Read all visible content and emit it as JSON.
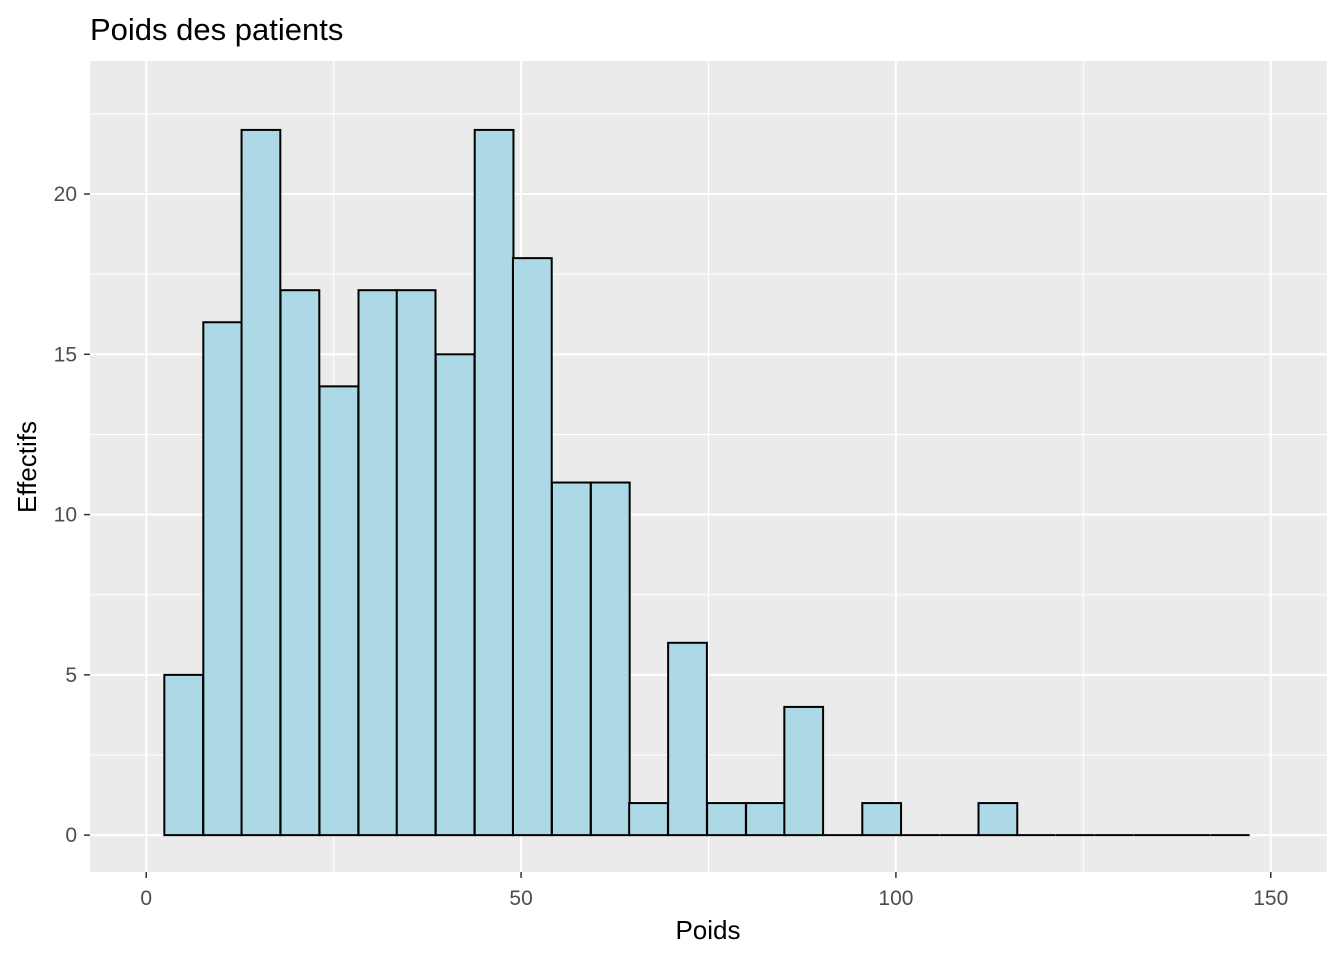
{
  "chart_data": {
    "type": "bar",
    "title": "Poids des patients",
    "xlabel": "Poids",
    "ylabel": "Effectifs",
    "xlim": [
      -7.5,
      157.5
    ],
    "ylim": [
      -1.15,
      24.15
    ],
    "x_ticks": [
      {
        "value": 0,
        "label": "0"
      },
      {
        "value": 50,
        "label": "50"
      },
      {
        "value": 100,
        "label": "100"
      },
      {
        "value": 150,
        "label": "150"
      }
    ],
    "y_ticks": [
      {
        "value": 0,
        "label": "0"
      },
      {
        "value": 5,
        "label": "5"
      },
      {
        "value": 10,
        "label": "10"
      },
      {
        "value": 15,
        "label": "15"
      },
      {
        "value": 20,
        "label": "20"
      }
    ],
    "bin_width": 5.17,
    "bins": [
      {
        "x": 5.0,
        "count": 5
      },
      {
        "x": 10.2,
        "count": 16
      },
      {
        "x": 15.3,
        "count": 22
      },
      {
        "x": 20.5,
        "count": 17
      },
      {
        "x": 25.7,
        "count": 14
      },
      {
        "x": 30.9,
        "count": 17
      },
      {
        "x": 36.0,
        "count": 17
      },
      {
        "x": 41.2,
        "count": 15
      },
      {
        "x": 46.4,
        "count": 22
      },
      {
        "x": 51.5,
        "count": 18
      },
      {
        "x": 56.7,
        "count": 11
      },
      {
        "x": 61.9,
        "count": 11
      },
      {
        "x": 67.0,
        "count": 1
      },
      {
        "x": 72.2,
        "count": 6
      },
      {
        "x": 77.4,
        "count": 1
      },
      {
        "x": 82.6,
        "count": 1
      },
      {
        "x": 87.7,
        "count": 4
      },
      {
        "x": 92.9,
        "count": 0
      },
      {
        "x": 98.1,
        "count": 1
      },
      {
        "x": 103.2,
        "count": 0
      },
      {
        "x": 108.4,
        "count": 0
      },
      {
        "x": 113.6,
        "count": 1
      },
      {
        "x": 118.7,
        "count": 0
      },
      {
        "x": 123.9,
        "count": 0
      },
      {
        "x": 129.1,
        "count": 0
      },
      {
        "x": 134.3,
        "count": 0
      },
      {
        "x": 139.4,
        "count": 0
      },
      {
        "x": 144.6,
        "count": 0
      }
    ],
    "colors": {
      "bar_fill": "#add8e6",
      "bar_outline": "#000000",
      "panel_background": "#ebebeb",
      "grid": "#ffffff"
    },
    "grid": true,
    "legend": "none"
  }
}
